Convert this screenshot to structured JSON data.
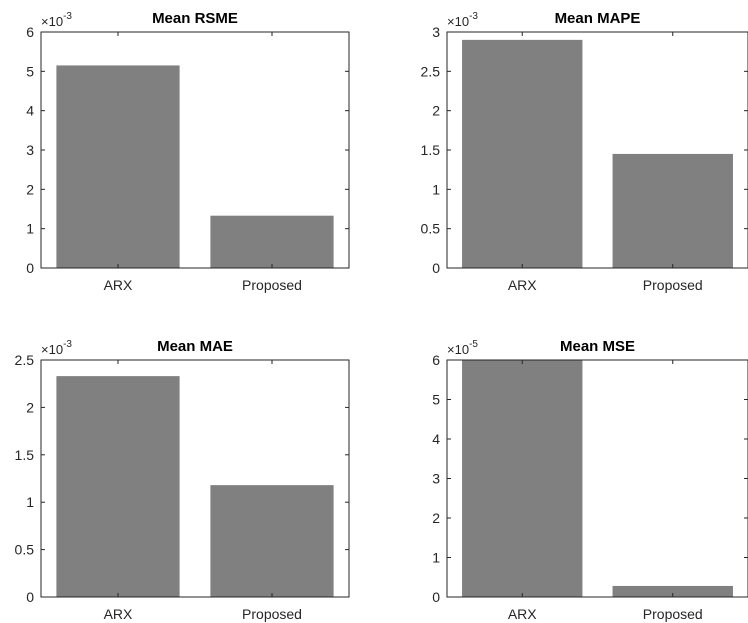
{
  "figure": {
    "bar_color": "#808080",
    "axis_color": "#262626"
  },
  "chart_data": [
    {
      "type": "bar",
      "title": "Mean RSME",
      "categories": [
        "ARX",
        "Proposed"
      ],
      "values": [
        5.15,
        1.33
      ],
      "ylim": [
        0,
        6
      ],
      "yticks": [
        0,
        1,
        2,
        3,
        4,
        5,
        6
      ],
      "ytick_labels": [
        "0",
        "1",
        "2",
        "3",
        "4",
        "5",
        "6"
      ],
      "exponent": "-3",
      "xlabel": "",
      "ylabel": "",
      "grid": false,
      "legend": "none"
    },
    {
      "type": "bar",
      "title": "Mean MAPE",
      "categories": [
        "ARX",
        "Proposed"
      ],
      "values": [
        2.9,
        1.45
      ],
      "ylim": [
        0,
        3
      ],
      "yticks": [
        0,
        0.5,
        1,
        1.5,
        2,
        2.5,
        3
      ],
      "ytick_labels": [
        "0",
        "0.5",
        "1",
        "1.5",
        "2",
        "2.5",
        "3"
      ],
      "exponent": "-3",
      "xlabel": "",
      "ylabel": "",
      "grid": false,
      "legend": "none"
    },
    {
      "type": "bar",
      "title": "Mean MAE",
      "categories": [
        "ARX",
        "Proposed"
      ],
      "values": [
        2.33,
        1.18
      ],
      "ylim": [
        0,
        2.5
      ],
      "yticks": [
        0,
        0.5,
        1,
        1.5,
        2,
        2.5
      ],
      "ytick_labels": [
        "0",
        "0.5",
        "1",
        "1.5",
        "2",
        "2.5"
      ],
      "exponent": "-3",
      "xlabel": "",
      "ylabel": "",
      "grid": false,
      "legend": "none"
    },
    {
      "type": "bar",
      "title": "Mean MSE",
      "categories": [
        "ARX",
        "Proposed"
      ],
      "values": [
        6.0,
        0.28
      ],
      "ylim": [
        0,
        6
      ],
      "yticks": [
        0,
        1,
        2,
        3,
        4,
        5,
        6
      ],
      "ytick_labels": [
        "0",
        "1",
        "2",
        "3",
        "4",
        "5",
        "6"
      ],
      "exponent": "-5",
      "xlabel": "",
      "ylabel": "",
      "grid": false,
      "legend": "none"
    }
  ]
}
